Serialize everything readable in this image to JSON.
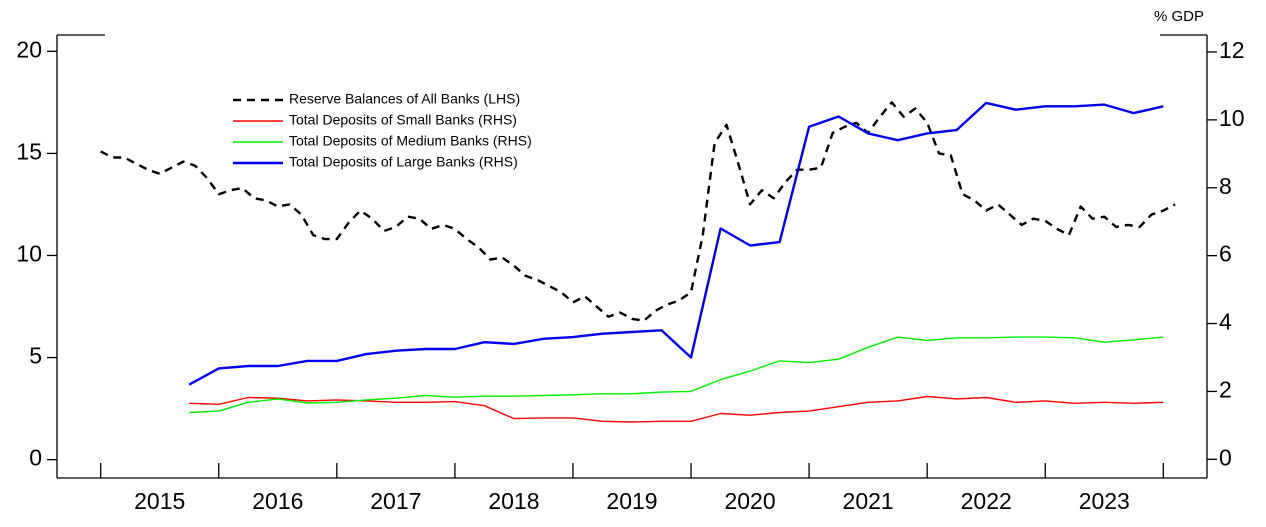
{
  "chart_data": {
    "type": "line",
    "y2label": "% GDP",
    "legend": "upper left",
    "xlim": [
      2014.63,
      2024.37
    ],
    "xticks": [
      {
        "value": 2015.5,
        "label": "2015"
      },
      {
        "value": 2016.5,
        "label": "2016"
      },
      {
        "value": 2017.5,
        "label": "2017"
      },
      {
        "value": 2018.5,
        "label": "2018"
      },
      {
        "value": 2019.5,
        "label": "2019"
      },
      {
        "value": 2020.5,
        "label": "2020"
      },
      {
        "value": 2021.5,
        "label": "2021"
      },
      {
        "value": 2022.5,
        "label": "2022"
      },
      {
        "value": 2023.5,
        "label": "2023"
      }
    ],
    "ylim": [
      -0.9,
      20.8
    ],
    "yticks": [
      0,
      5,
      10,
      15,
      20
    ],
    "y2lim": [
      -0.55,
      12.5
    ],
    "y2ticks": [
      0,
      2,
      4,
      6,
      8,
      10,
      12
    ],
    "series": [
      {
        "name": "Reserve Balances of All Banks (LHS)",
        "color": "#000000",
        "style": "dashed",
        "axis": "y",
        "x": [
          2015.0,
          2015.1,
          2015.2,
          2015.3,
          2015.4,
          2015.5,
          2015.6,
          2015.7,
          2015.8,
          2015.9,
          2016.0,
          2016.1,
          2016.2,
          2016.3,
          2016.4,
          2016.5,
          2016.6,
          2016.7,
          2016.8,
          2016.9,
          2017.0,
          2017.1,
          2017.2,
          2017.3,
          2017.4,
          2017.5,
          2017.6,
          2017.7,
          2017.8,
          2017.9,
          2018.0,
          2018.1,
          2018.2,
          2018.3,
          2018.4,
          2018.5,
          2018.6,
          2018.7,
          2018.8,
          2018.9,
          2019.0,
          2019.1,
          2019.2,
          2019.3,
          2019.4,
          2019.5,
          2019.6,
          2019.7,
          2019.8,
          2019.9,
          2020.0,
          2020.1,
          2020.2,
          2020.3,
          2020.4,
          2020.5,
          2020.6,
          2020.7,
          2020.8,
          2020.9,
          2021.0,
          2021.1,
          2021.2,
          2021.3,
          2021.4,
          2021.5,
          2021.6,
          2021.7,
          2021.8,
          2021.9,
          2022.0,
          2022.1,
          2022.2,
          2022.3,
          2022.4,
          2022.5,
          2022.6,
          2022.7,
          2022.8,
          2022.9,
          2023.0,
          2023.1,
          2023.2,
          2023.3,
          2023.4,
          2023.5,
          2023.6,
          2023.7,
          2023.8,
          2023.9,
          2024.0,
          2024.1
        ],
        "values": [
          15.1,
          14.8,
          14.8,
          14.5,
          14.2,
          14.0,
          14.3,
          14.6,
          14.4,
          13.8,
          13.0,
          13.2,
          13.3,
          12.8,
          12.7,
          12.4,
          12.5,
          12.0,
          11.0,
          10.8,
          10.8,
          11.6,
          12.2,
          11.8,
          11.2,
          11.4,
          11.9,
          11.8,
          11.3,
          11.5,
          11.3,
          10.8,
          10.4,
          9.8,
          9.9,
          9.5,
          9.0,
          8.8,
          8.5,
          8.2,
          7.7,
          8.0,
          7.5,
          7.0,
          7.2,
          6.9,
          6.8,
          7.3,
          7.6,
          7.8,
          8.2,
          11.0,
          15.5,
          16.4,
          14.5,
          12.5,
          13.2,
          12.8,
          13.6,
          14.2,
          14.2,
          14.3,
          16.0,
          16.3,
          16.5,
          16.0,
          16.8,
          17.5,
          16.8,
          17.2,
          16.5,
          15.0,
          14.9,
          13.0,
          12.7,
          12.2,
          12.5,
          12.0,
          11.5,
          11.8,
          11.7,
          11.3,
          11.0,
          12.4,
          11.8,
          11.9,
          11.4,
          11.5,
          11.4,
          12.0,
          12.2,
          12.5
        ]
      },
      {
        "name": "Total Deposits of Small Banks (RHS)",
        "color": "#ff0000",
        "style": "solid",
        "axis": "y2",
        "x": [
          2015.75,
          2016.0,
          2016.25,
          2016.5,
          2016.75,
          2017.0,
          2017.25,
          2017.5,
          2017.75,
          2018.0,
          2018.25,
          2018.5,
          2018.75,
          2019.0,
          2019.25,
          2019.5,
          2019.75,
          2020.0,
          2020.25,
          2020.5,
          2020.75,
          2021.0,
          2021.25,
          2021.5,
          2021.75,
          2022.0,
          2022.25,
          2022.5,
          2022.75,
          2023.0,
          2023.25,
          2023.5,
          2023.75,
          2024.0
        ],
        "values": [
          1.65,
          1.62,
          1.82,
          1.8,
          1.72,
          1.75,
          1.72,
          1.68,
          1.68,
          1.7,
          1.58,
          1.2,
          1.22,
          1.22,
          1.12,
          1.1,
          1.12,
          1.12,
          1.35,
          1.3,
          1.38,
          1.42,
          1.55,
          1.68,
          1.72,
          1.85,
          1.78,
          1.82,
          1.68,
          1.72,
          1.65,
          1.68,
          1.65,
          1.68
        ]
      },
      {
        "name": "Total Deposits of Medium Banks (RHS)",
        "color": "#00ee00",
        "style": "solid",
        "axis": "y2",
        "x": [
          2015.75,
          2016.0,
          2016.25,
          2016.5,
          2016.75,
          2017.0,
          2017.25,
          2017.5,
          2017.75,
          2018.0,
          2018.25,
          2018.5,
          2018.75,
          2019.0,
          2019.25,
          2019.5,
          2019.75,
          2020.0,
          2020.25,
          2020.5,
          2020.75,
          2021.0,
          2021.25,
          2021.5,
          2021.75,
          2022.0,
          2022.25,
          2022.5,
          2022.75,
          2023.0,
          2023.25,
          2023.5,
          2023.75,
          2024.0
        ],
        "values": [
          1.38,
          1.42,
          1.68,
          1.78,
          1.66,
          1.68,
          1.75,
          1.8,
          1.88,
          1.83,
          1.86,
          1.86,
          1.88,
          1.9,
          1.93,
          1.93,
          1.98,
          2.0,
          2.35,
          2.6,
          2.9,
          2.85,
          2.95,
          3.3,
          3.6,
          3.5,
          3.58,
          3.58,
          3.6,
          3.6,
          3.58,
          3.45,
          3.52,
          3.6
        ]
      },
      {
        "name": "Total Deposits of Large Banks (RHS)",
        "color": "#0000ee",
        "style": "solid",
        "axis": "y2",
        "x": [
          2015.75,
          2016.0,
          2016.25,
          2016.5,
          2016.75,
          2017.0,
          2017.25,
          2017.5,
          2017.75,
          2018.0,
          2018.25,
          2018.5,
          2018.75,
          2019.0,
          2019.25,
          2019.5,
          2019.75,
          2020.0,
          2020.25,
          2020.5,
          2020.75,
          2021.0,
          2021.25,
          2021.5,
          2021.75,
          2022.0,
          2022.25,
          2022.5,
          2022.75,
          2023.0,
          2023.25,
          2023.5,
          2023.75,
          2024.0
        ],
        "values": [
          2.2,
          2.68,
          2.75,
          2.75,
          2.9,
          2.9,
          3.1,
          3.2,
          3.25,
          3.25,
          3.45,
          3.4,
          3.55,
          3.6,
          3.7,
          3.75,
          3.8,
          3.0,
          6.8,
          6.3,
          6.4,
          9.8,
          10.1,
          9.6,
          9.4,
          9.6,
          9.7,
          10.5,
          10.3,
          10.4,
          10.4,
          10.45,
          10.2,
          10.4
        ]
      }
    ]
  }
}
